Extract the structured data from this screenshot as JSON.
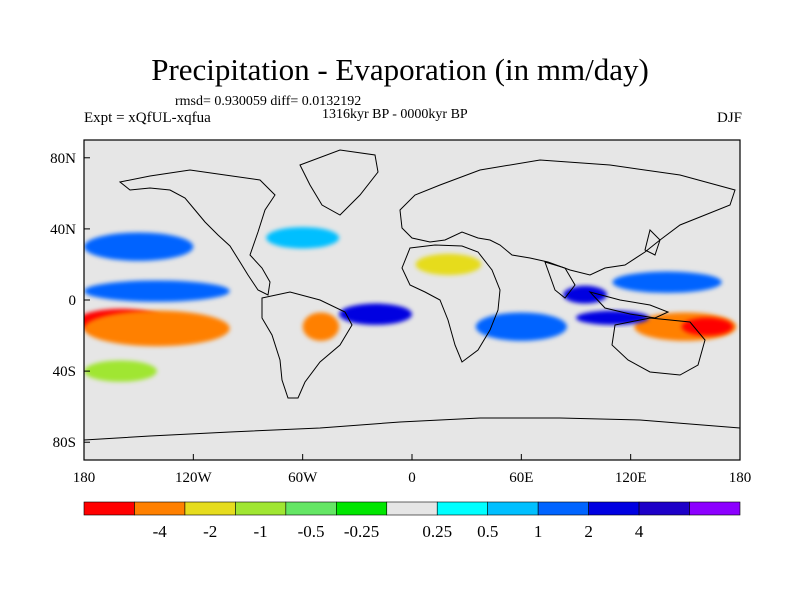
{
  "title": "Precipitation - Evaporation (in mm/day)",
  "stats": "rmsd= 0.930059 diff= 0.0132192",
  "period": "1316kyr BP - 0000kyr BP",
  "experiment": "Expt = xQfUL-xqfua",
  "season": "DJF",
  "map": {
    "lon_ticks": [
      {
        "value": -180,
        "label": "180"
      },
      {
        "value": -120,
        "label": "120W"
      },
      {
        "value": -60,
        "label": "60W"
      },
      {
        "value": 0,
        "label": "0"
      },
      {
        "value": 60,
        "label": "60E"
      },
      {
        "value": 120,
        "label": "120E"
      },
      {
        "value": 180,
        "label": "180"
      }
    ],
    "lat_ticks": [
      {
        "value": 80,
        "label": "80N"
      },
      {
        "value": 40,
        "label": "40N"
      },
      {
        "value": 0,
        "label": "0"
      },
      {
        "value": -40,
        "label": "40S"
      },
      {
        "value": -80,
        "label": "80S"
      }
    ],
    "lon_range": [
      -180,
      180
    ],
    "lat_range": [
      -90,
      90
    ],
    "background_color": "#e6e6e6"
  },
  "colorbar": {
    "colors": [
      "#ff0000",
      "#ff8000",
      "#e6dc1e",
      "#a0e632",
      "#64e664",
      "#00e600",
      "#e6e6e6",
      "#00ffff",
      "#00bfff",
      "#0064ff",
      "#0000e1",
      "#1e00c8",
      "#8c00ff"
    ],
    "labels": [
      "-4",
      "-2",
      "-1",
      "-0.5",
      "-0.25",
      "0.25",
      "0.5",
      "1",
      "2",
      "4"
    ],
    "label_bins": [
      1,
      2,
      3,
      4,
      5,
      7,
      8,
      9,
      10,
      11
    ]
  },
  "chart_data": {
    "type": "heatmap",
    "variable": "Precipitation - Evaporation",
    "units": "mm/day",
    "contour_levels": [
      -4,
      -2,
      -1,
      -0.5,
      -0.25,
      0.25,
      0.5,
      1,
      2,
      4
    ],
    "regions": [
      {
        "lon": -160,
        "lat": -12,
        "rx": 24,
        "ry": 7,
        "level": -4
      },
      {
        "lon": -140,
        "lat": -16,
        "rx": 40,
        "ry": 10,
        "level": -2
      },
      {
        "lon": -50,
        "lat": -15,
        "rx": 10,
        "ry": 8,
        "level": -2
      },
      {
        "lon": 20,
        "lat": 20,
        "rx": 18,
        "ry": 6,
        "level": -1
      },
      {
        "lon": 150,
        "lat": -15,
        "rx": 28,
        "ry": 8,
        "level": -2
      },
      {
        "lon": 162,
        "lat": -15,
        "rx": 14,
        "ry": 5,
        "level": -4
      },
      {
        "lon": -150,
        "lat": 30,
        "rx": 30,
        "ry": 8,
        "level": 1
      },
      {
        "lon": -140,
        "lat": 5,
        "rx": 40,
        "ry": 6,
        "level": 1
      },
      {
        "lon": -20,
        "lat": -8,
        "rx": 20,
        "ry": 6,
        "level": 2
      },
      {
        "lon": 60,
        "lat": -15,
        "rx": 25,
        "ry": 8,
        "level": 1
      },
      {
        "lon": 95,
        "lat": 3,
        "rx": 12,
        "ry": 5,
        "level": 2
      },
      {
        "lon": 110,
        "lat": -10,
        "rx": 20,
        "ry": 4,
        "level": 2
      },
      {
        "lon": 140,
        "lat": 10,
        "rx": 30,
        "ry": 6,
        "level": 1
      },
      {
        "lon": -60,
        "lat": 35,
        "rx": 20,
        "ry": 6,
        "level": 0.5
      },
      {
        "lon": -160,
        "lat": -40,
        "rx": 20,
        "ry": 6,
        "level": -0.5
      }
    ]
  }
}
